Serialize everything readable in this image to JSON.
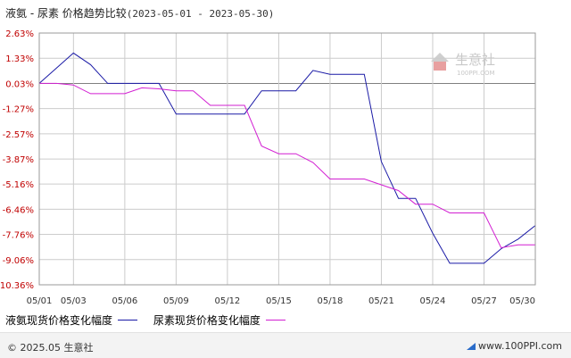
{
  "title": {
    "main": "液氨 - 尿素 价格趋势比较",
    "range": "(2023-05-01 - 2023-05-30)"
  },
  "watermark": {
    "cn": "生意社",
    "en": "100PPI.COM"
  },
  "footer": {
    "copyright": "© 2025.05 生意社",
    "site": "www.100PPI.com"
  },
  "colors": {
    "series1": "#1a1aa6",
    "series2": "#d21fd2",
    "yTick": "#c00000",
    "grid": "#cccccc",
    "zero": "#808080"
  },
  "chart_data": {
    "type": "line",
    "y_ticks": [
      "2.63%",
      "1.33%",
      "0.03%",
      "-1.27%",
      "-2.57%",
      "-3.87%",
      "-5.16%",
      "-6.46%",
      "-7.76%",
      "-9.06%",
      "-10.36%"
    ],
    "x_ticks": [
      "05/01",
      "05/03",
      "05/06",
      "05/09",
      "05/12",
      "05/15",
      "05/18",
      "05/21",
      "05/24",
      "05/27",
      "05/30"
    ],
    "ylim": [
      -10.36,
      2.63
    ],
    "x_range": [
      1,
      30
    ],
    "series": [
      {
        "name": "液氨现货价格变化幅度",
        "x": [
          1,
          3,
          4,
          5,
          6,
          7,
          8,
          9,
          12,
          13,
          14,
          16,
          17,
          18,
          19,
          20,
          21,
          22,
          23,
          24,
          25,
          26,
          27,
          28,
          29,
          30
        ],
        "y": [
          0.03,
          1.6,
          1.0,
          0.03,
          0.03,
          0.03,
          0.03,
          -1.55,
          -1.55,
          -1.55,
          -0.35,
          -0.35,
          0.7,
          0.5,
          0.5,
          0.5,
          -4.0,
          -5.9,
          -5.9,
          -7.7,
          -9.25,
          -9.25,
          -9.25,
          -8.5,
          -8.0,
          -7.3
        ]
      },
      {
        "name": "尿素现货价格变化幅度",
        "x": [
          1,
          2,
          3,
          4,
          5,
          6,
          7,
          8,
          9,
          10,
          11,
          12,
          13,
          14,
          15,
          16,
          17,
          18,
          19,
          20,
          21,
          22,
          23,
          24,
          25,
          26,
          27,
          28,
          29,
          30
        ],
        "y": [
          0.03,
          0.03,
          -0.05,
          -0.5,
          -0.5,
          -0.5,
          -0.2,
          -0.25,
          -0.35,
          -0.35,
          -1.1,
          -1.1,
          -1.1,
          -3.2,
          -3.6,
          -3.6,
          -4.05,
          -4.9,
          -4.9,
          -4.9,
          -5.2,
          -5.5,
          -6.2,
          -6.2,
          -6.65,
          -6.65,
          -6.65,
          -8.45,
          -8.3,
          -8.3
        ]
      }
    ]
  }
}
